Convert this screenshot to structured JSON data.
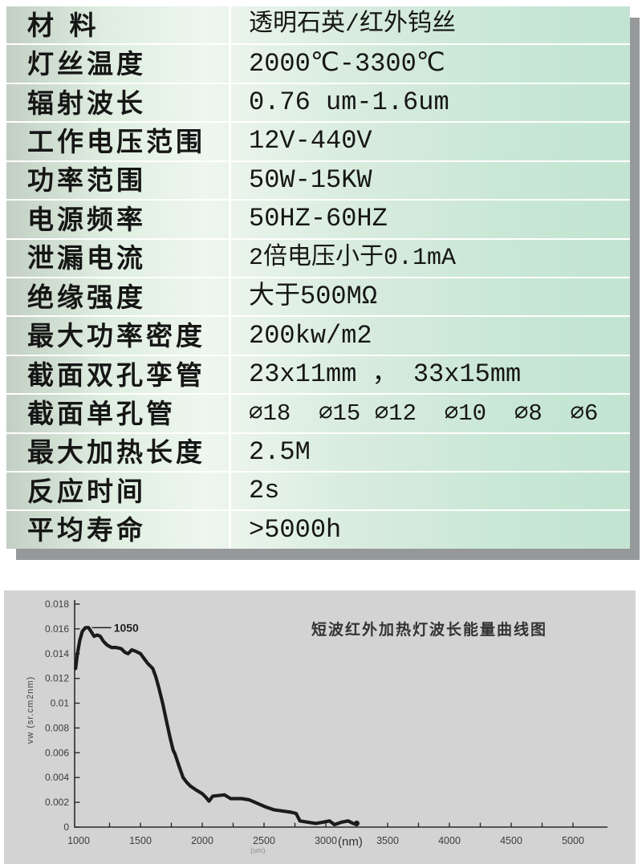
{
  "spec_table": {
    "rows": [
      {
        "label": "材 料",
        "value": "透明石英/红外钨丝"
      },
      {
        "label": "灯丝温度",
        "value": "2000℃-3300℃"
      },
      {
        "label": "辐射波长",
        "value": "0.76 um-1.6um"
      },
      {
        "label": "工作电压范围",
        "value": "12V-440V"
      },
      {
        "label": "功率范围",
        "value": "50W-15KW"
      },
      {
        "label": "电源频率",
        "value": "50HZ-60HZ"
      },
      {
        "label": "泄漏电流",
        "value": "2倍电压小于0.1mA"
      },
      {
        "label": "绝缘强度",
        "value": "大于500MΩ"
      },
      {
        "label": "最大功率密度",
        "value": "200kw/m2"
      },
      {
        "label": "截面双孔孪管",
        "value": "23x11mm ， 33x15mm"
      },
      {
        "label": "截面单孔管",
        "value": "∅18  ∅15 ∅12  ∅10  ∅8  ∅6"
      },
      {
        "label": "最大加热长度",
        "value": "2.5M"
      },
      {
        "label": "反应时间",
        "value": "2s"
      },
      {
        "label": "平均寿命",
        "value": ">5000h"
      }
    ],
    "colors": {
      "gradient_left": "#c3cfc4",
      "gradient_center": "#eef6ef",
      "gradient_right": "#c3e4d2",
      "divider": "#ffffff",
      "shadow": "#97989a",
      "text": "#161616"
    }
  },
  "chart": {
    "title": "短波红外加热灯波长能量曲线图",
    "y_axis_label": "vw (sr.cm2nm)",
    "x_unit_label": "(nm)",
    "x_unit_small": "(um)",
    "panel_color": "#d3d3d3",
    "axis_color": "#2a2a2a",
    "curve_color": "#1b1b1b",
    "tick_text_color": "#3c3c3c"
  },
  "chart_data": {
    "type": "line",
    "title": "短波红外加热灯波长能量曲线图",
    "xlabel": "(nm)",
    "xlabel_secondary": "(um)",
    "ylabel": "vw (sr.cm2nm)",
    "xlim": [
      1000,
      5270
    ],
    "ylim": [
      0,
      0.018
    ],
    "grid": false,
    "x_tick_min": 1000,
    "x_tick_max": 5000,
    "x_tick_step_labeled": 500,
    "x_tick_step_minor": 250,
    "y_ticks": [
      0.018,
      0.016,
      0.014,
      0.012,
      0.01,
      0.008,
      0.006,
      0.004,
      0.002,
      0
    ],
    "y_tick_labels": [
      "0.018",
      "0.016",
      "0.014",
      "0.012",
      "0.01",
      "0.008",
      "0.006",
      "0.004",
      "0.002",
      "0"
    ],
    "series": [
      {
        "name": "short-wave-ir-lamp-energy",
        "points": [
          [
            975,
            0.0128
          ],
          [
            990,
            0.014
          ],
          [
            1010,
            0.0151
          ],
          [
            1030,
            0.0158
          ],
          [
            1055,
            0.0161
          ],
          [
            1080,
            0.0161
          ],
          [
            1100,
            0.0158
          ],
          [
            1125,
            0.0154
          ],
          [
            1150,
            0.0155
          ],
          [
            1175,
            0.0154
          ],
          [
            1200,
            0.015
          ],
          [
            1230,
            0.0147
          ],
          [
            1265,
            0.0145
          ],
          [
            1300,
            0.0145
          ],
          [
            1345,
            0.0144
          ],
          [
            1375,
            0.0141
          ],
          [
            1400,
            0.014
          ],
          [
            1430,
            0.0143
          ],
          [
            1460,
            0.0142
          ],
          [
            1500,
            0.014
          ],
          [
            1530,
            0.0136
          ],
          [
            1560,
            0.0132
          ],
          [
            1600,
            0.0128
          ],
          [
            1625,
            0.0121
          ],
          [
            1650,
            0.0112
          ],
          [
            1680,
            0.01
          ],
          [
            1710,
            0.0086
          ],
          [
            1740,
            0.0072
          ],
          [
            1765,
            0.0062
          ],
          [
            1780,
            0.0059
          ],
          [
            1810,
            0.005
          ],
          [
            1845,
            0.004
          ],
          [
            1875,
            0.0036
          ],
          [
            1905,
            0.0033
          ],
          [
            1950,
            0.003
          ],
          [
            2000,
            0.0027
          ],
          [
            2030,
            0.0024
          ],
          [
            2055,
            0.0021
          ],
          [
            2085,
            0.0025
          ],
          [
            2180,
            0.0026
          ],
          [
            2230,
            0.0023
          ],
          [
            2320,
            0.0023
          ],
          [
            2380,
            0.0022
          ],
          [
            2450,
            0.0019
          ],
          [
            2520,
            0.0016
          ],
          [
            2580,
            0.0014
          ],
          [
            2650,
            0.0013
          ],
          [
            2720,
            0.0012
          ],
          [
            2760,
            0.0011
          ],
          [
            2790,
            0.0005
          ],
          [
            2850,
            0.0004
          ],
          [
            2920,
            0.0003
          ],
          [
            2980,
            0.0004
          ],
          [
            3030,
            0.0005
          ],
          [
            3070,
            0.0002
          ],
          [
            3130,
            0.0004
          ],
          [
            3180,
            0.0005
          ],
          [
            3220,
            0.0003
          ],
          [
            3250,
            0.0002
          ]
        ]
      }
    ],
    "annotations": [
      {
        "text": "1050",
        "x": 1050,
        "y": 0.0161
      }
    ],
    "legend_position": "none"
  }
}
